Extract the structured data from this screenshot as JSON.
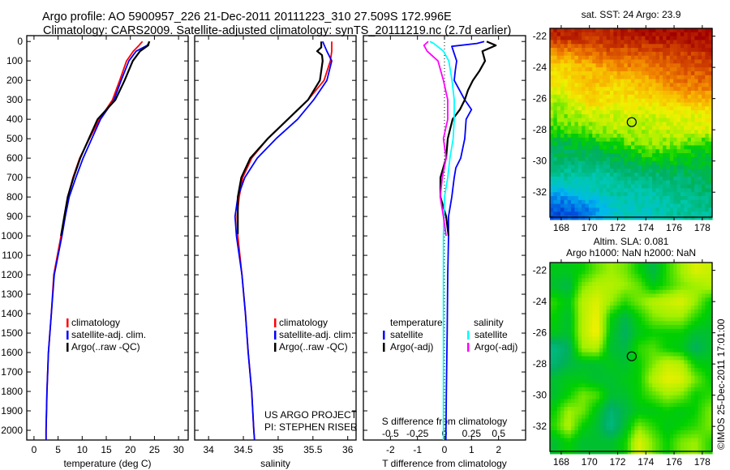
{
  "title": {
    "line1": "Argo profile: AO 5900957_226 21-Dec-2011 20111223_310 27.509S 172.996E",
    "line2": "Climatology: CARS2009. Satellite-adjusted climatology: synTS_20111219.nc (2.7d earlier)"
  },
  "footer": {
    "project": "US ARGO PROJECT",
    "pi": "PI: STEPHEN RISER",
    "stamp": "©IMOS 25-Dec-2011 17:01:00"
  },
  "colors": {
    "climatology": "#ff0000",
    "satellite": "#0000ff",
    "argo": "#000000",
    "sal_satellite": "#00ffff",
    "sal_argo": "#ff00ff"
  },
  "chart_data": [
    {
      "type": "line",
      "xlabel": "temperature (deg C)",
      "ylabel": "",
      "xlim": [
        -1.5,
        32
      ],
      "ylim": [
        2050,
        -30
      ],
      "xticks": [
        "0",
        "5",
        "10",
        "15",
        "20",
        "25",
        "30"
      ],
      "xtick_values": [
        0,
        5,
        10,
        15,
        20,
        25,
        30
      ],
      "yticks": [
        "0",
        "100",
        "200",
        "300",
        "400",
        "500",
        "600",
        "700",
        "800",
        "900",
        "1000",
        "1100",
        "1200",
        "1300",
        "1400",
        "1500",
        "1600",
        "1700",
        "1800",
        "1900",
        "2000"
      ],
      "ytick_values": [
        0,
        100,
        200,
        300,
        400,
        500,
        600,
        700,
        800,
        900,
        1000,
        1100,
        1200,
        1300,
        1400,
        1500,
        1600,
        1700,
        1800,
        1900,
        2000
      ],
      "legend": [
        "climatology",
        "satellite-adj. clim.",
        "Argo(..raw -QC)"
      ],
      "series": [
        {
          "name": "climatology",
          "color": "#ff0000",
          "depth": [
            0,
            20,
            50,
            100,
            200,
            300,
            400,
            500,
            600,
            700,
            800,
            900,
            1000,
            1200,
            1400,
            1600,
            1800,
            2000,
            2050
          ],
          "values": [
            22.5,
            21.8,
            20.6,
            19.2,
            17.8,
            16.3,
            13.6,
            11.5,
            9.5,
            8.1,
            7.0,
            6.3,
            5.6,
            4.1,
            3.6,
            3.0,
            2.7,
            2.5,
            2.5
          ]
        },
        {
          "name": "satellite-adj. clim.",
          "color": "#0000ff",
          "depth": [
            0,
            20,
            50,
            100,
            200,
            300,
            400,
            500,
            600,
            700,
            800,
            900,
            1000,
            1200,
            1400,
            1600,
            1800,
            2000,
            2050
          ],
          "values": [
            24.0,
            23.5,
            21.2,
            19.7,
            18.1,
            16.6,
            13.8,
            12.0,
            10.2,
            8.7,
            7.3,
            6.5,
            5.8,
            4.2,
            3.6,
            3.0,
            2.7,
            2.5,
            2.5
          ]
        },
        {
          "name": "Argo(..raw -QC)",
          "color": "#000000",
          "depth": [
            0,
            20,
            50,
            100,
            200,
            300,
            400,
            500,
            600,
            700,
            800,
            900,
            1000
          ],
          "values": [
            23.9,
            23.7,
            22.0,
            20.5,
            18.8,
            16.9,
            13.2,
            11.4,
            9.6,
            8.2,
            7.0,
            6.3,
            5.6
          ]
        }
      ]
    },
    {
      "type": "line",
      "xlabel": "salinity",
      "xlim": [
        33.8,
        36.12
      ],
      "ylim": [
        2050,
        -30
      ],
      "xticks": [
        "34",
        "34.5",
        "35",
        "35.5",
        "36"
      ],
      "xtick_values": [
        34,
        34.5,
        35,
        35.5,
        36
      ],
      "legend": [
        "climatology",
        "satellite-adj. clim.",
        "Argo(..raw -QC)"
      ],
      "series": [
        {
          "name": "climatology",
          "color": "#ff0000",
          "depth": [
            0,
            50,
            100,
            200,
            300,
            400,
            500,
            600,
            700,
            800,
            900,
            1000,
            1200,
            1400,
            1600,
            1800,
            2000,
            2050
          ],
          "values": [
            35.77,
            35.77,
            35.75,
            35.66,
            35.43,
            35.14,
            34.85,
            34.62,
            34.49,
            34.44,
            34.41,
            34.42,
            34.48,
            34.53,
            34.57,
            34.62,
            34.65,
            34.66
          ]
        },
        {
          "name": "satellite-adj. clim.",
          "color": "#0000ff",
          "depth": [
            0,
            50,
            100,
            200,
            300,
            400,
            500,
            600,
            700,
            800,
            900,
            1000,
            1200,
            1400,
            1600,
            1800,
            2000,
            2050
          ],
          "values": [
            35.64,
            35.7,
            35.77,
            35.7,
            35.51,
            35.28,
            34.97,
            34.7,
            34.52,
            34.42,
            34.38,
            34.4,
            34.48,
            34.53,
            34.57,
            34.62,
            34.65,
            34.66
          ]
        },
        {
          "name": "Argo(..raw -QC)",
          "color": "#000000",
          "depth": [
            0,
            30,
            50,
            70,
            100,
            200,
            300,
            400,
            500,
            600,
            700,
            800,
            900,
            990
          ],
          "values": [
            35.62,
            35.62,
            35.56,
            35.63,
            35.64,
            35.6,
            35.43,
            35.14,
            34.85,
            34.6,
            34.47,
            34.42,
            34.42,
            34.42
          ]
        }
      ]
    },
    {
      "type": "line",
      "xlabel": "T difference from climatology",
      "xlabel2": "S difference from climatology",
      "xlim": [
        -3,
        3
      ],
      "xlim2": [
        -0.75,
        0.75
      ],
      "ylim": [
        2050,
        -30
      ],
      "xticks": [
        "-2",
        "-1",
        "0",
        "1",
        "2"
      ],
      "xtick_values": [
        -2,
        -1,
        0,
        1,
        2
      ],
      "xticks2": [
        "-0.5",
        "-0.25",
        "0",
        "0.25",
        "0.5"
      ],
      "xtick_values2": [
        -0.5,
        -0.25,
        0,
        0.25,
        0.5
      ],
      "legend_headers": [
        "temperature",
        "salinity"
      ],
      "legend": [
        "satellite",
        "Argo(-adj)",
        "satellite",
        "Argo(-adj)"
      ],
      "series": [
        {
          "name": "temperature satellite",
          "axis": "T",
          "color": "#0000ff",
          "depth": [
            0,
            10,
            25,
            100,
            150,
            200,
            300,
            350,
            400,
            500,
            600,
            650,
            700,
            800,
            900,
            1000,
            1200,
            1500,
            1800,
            2050
          ],
          "values": [
            1.47,
            1.2,
            0.27,
            0.45,
            0.4,
            0.36,
            0.75,
            1.0,
            0.8,
            0.75,
            0.6,
            0.42,
            0.36,
            0.27,
            0.15,
            0.15,
            0.12,
            0.1,
            0.07,
            0.05
          ]
        },
        {
          "name": "temperature Argo(-adj)",
          "axis": "T",
          "color": "#000000",
          "depth": [
            0,
            20,
            50,
            100,
            150,
            200,
            250,
            300,
            350,
            400,
            500,
            600,
            700,
            800,
            900,
            1000
          ],
          "values": [
            1.56,
            1.9,
            1.4,
            1.5,
            1.3,
            1.05,
            0.87,
            0.75,
            0.57,
            0.3,
            0.12,
            0.06,
            -0.15,
            -0.15,
            0.06,
            0.15
          ]
        },
        {
          "name": "salinity satellite",
          "axis": "S",
          "color": "#00ffff",
          "depth": [
            0,
            10,
            50,
            100,
            200,
            300,
            400,
            500,
            600,
            700,
            800,
            1000,
            1500,
            2050
          ],
          "values": [
            -0.135,
            -0.1,
            -0.01,
            0.04,
            0.07,
            0.09,
            0.09,
            0.08,
            0.05,
            0.03,
            0.0,
            -0.01,
            -0.01,
            -0.01
          ]
        },
        {
          "name": "salinity Argo(-adj)",
          "axis": "S",
          "color": "#ff00ff",
          "depth": [
            0,
            20,
            50,
            100,
            200,
            300,
            400,
            500,
            600,
            700,
            800,
            900,
            1000
          ],
          "values": [
            -0.15,
            -0.19,
            -0.16,
            -0.06,
            -0.01,
            0.03,
            0.03,
            -0.01,
            0.015,
            -0.02,
            -0.04,
            -0.01,
            0.015
          ]
        }
      ]
    },
    {
      "type": "heatmap",
      "title": "sat. SST: 24 Argo: 23.9",
      "xlim": [
        167.2,
        178.7
      ],
      "ylim": [
        -33.6,
        -21.5
      ],
      "xticks": [
        "168",
        "170",
        "172",
        "174",
        "176",
        "178"
      ],
      "xtick_values": [
        168,
        170,
        172,
        174,
        176,
        178
      ],
      "yticks": [
        "-22",
        "-24",
        "-26",
        "-28",
        "-30",
        "-32"
      ],
      "ytick_values": [
        -22,
        -24,
        -26,
        -28,
        -30,
        -32
      ],
      "grid_lons": [
        168,
        170,
        172,
        174,
        176,
        178
      ],
      "grid_lats": [
        -22,
        -23,
        -24,
        -25,
        -26,
        -27,
        -28,
        -29,
        -30,
        -31,
        -32,
        -33
      ],
      "values_normalized": [
        [
          0.95,
          0.93,
          0.95,
          0.97,
          0.98,
          0.99
        ],
        [
          0.8,
          0.85,
          0.88,
          0.88,
          0.9,
          0.93
        ],
        [
          0.7,
          0.75,
          0.8,
          0.82,
          0.85,
          0.88
        ],
        [
          0.68,
          0.74,
          0.7,
          0.75,
          0.82,
          0.84
        ],
        [
          0.6,
          0.72,
          0.68,
          0.7,
          0.75,
          0.76
        ],
        [
          0.57,
          0.62,
          0.62,
          0.62,
          0.64,
          0.66
        ],
        [
          0.52,
          0.56,
          0.6,
          0.6,
          0.62,
          0.64
        ],
        [
          0.44,
          0.46,
          0.5,
          0.58,
          0.56,
          0.5
        ],
        [
          0.4,
          0.4,
          0.42,
          0.46,
          0.48,
          0.46
        ],
        [
          0.34,
          0.32,
          0.36,
          0.38,
          0.4,
          0.42
        ],
        [
          0.22,
          0.3,
          0.34,
          0.32,
          0.36,
          0.4
        ],
        [
          0.1,
          0.16,
          0.3,
          0.3,
          0.34,
          0.36
        ]
      ],
      "marker": {
        "lon": 172.996,
        "lat": -27.509
      }
    },
    {
      "type": "heatmap",
      "title": "Altim. SLA: 0.081",
      "subtitle": "Argo h1000: NaN h2000: NaN",
      "xlim": [
        167.2,
        178.7
      ],
      "ylim": [
        -33.6,
        -21.5
      ],
      "xticks": [
        "168",
        "170",
        "172",
        "174",
        "176",
        "178"
      ],
      "xtick_values": [
        168,
        170,
        172,
        174,
        176,
        178
      ],
      "yticks": [
        "-22",
        "-24",
        "-26",
        "-28",
        "-30",
        "-32"
      ],
      "ytick_values": [
        -22,
        -24,
        -26,
        -28,
        -30,
        -32
      ],
      "grid_lons": [
        167.5,
        168.5,
        169.5,
        170.5,
        171.5,
        172.5,
        173.5,
        174.5,
        175.5,
        176.5,
        177.5,
        178.5
      ],
      "grid_lats": [
        -22,
        -23,
        -24,
        -25,
        -26,
        -27,
        -28,
        -29,
        -30,
        -31,
        -32,
        -33
      ],
      "values_normalized": [
        [
          0.48,
          0.48,
          0.5,
          0.55,
          0.58,
          0.56,
          0.5,
          0.44,
          0.52,
          0.58,
          0.64,
          0.62
        ],
        [
          0.46,
          0.44,
          0.56,
          0.6,
          0.6,
          0.58,
          0.55,
          0.48,
          0.52,
          0.56,
          0.58,
          0.6
        ],
        [
          0.52,
          0.48,
          0.6,
          0.64,
          0.58,
          0.52,
          0.56,
          0.6,
          0.62,
          0.64,
          0.58,
          0.5
        ],
        [
          0.5,
          0.46,
          0.6,
          0.66,
          0.5,
          0.44,
          0.5,
          0.56,
          0.58,
          0.58,
          0.52,
          0.48
        ],
        [
          0.48,
          0.46,
          0.6,
          0.67,
          0.48,
          0.42,
          0.48,
          0.5,
          0.5,
          0.5,
          0.46,
          0.46
        ],
        [
          0.38,
          0.42,
          0.58,
          0.6,
          0.46,
          0.44,
          0.52,
          0.54,
          0.5,
          0.48,
          0.42,
          0.46
        ],
        [
          0.4,
          0.44,
          0.46,
          0.46,
          0.48,
          0.46,
          0.5,
          0.56,
          0.62,
          0.6,
          0.5,
          0.48
        ],
        [
          0.46,
          0.48,
          0.48,
          0.46,
          0.46,
          0.48,
          0.5,
          0.6,
          0.65,
          0.64,
          0.56,
          0.5
        ],
        [
          0.46,
          0.5,
          0.56,
          0.54,
          0.46,
          0.46,
          0.5,
          0.54,
          0.58,
          0.56,
          0.5,
          0.52
        ],
        [
          0.5,
          0.58,
          0.56,
          0.48,
          0.4,
          0.44,
          0.48,
          0.48,
          0.5,
          0.48,
          0.5,
          0.56
        ],
        [
          0.52,
          0.6,
          0.5,
          0.46,
          0.38,
          0.46,
          0.56,
          0.52,
          0.48,
          0.5,
          0.52,
          0.56
        ],
        [
          0.46,
          0.5,
          0.46,
          0.46,
          0.46,
          0.5,
          0.64,
          0.56,
          0.5,
          0.56,
          0.58,
          0.52
        ]
      ],
      "marker": {
        "lon": 172.996,
        "lat": -27.509
      }
    }
  ]
}
